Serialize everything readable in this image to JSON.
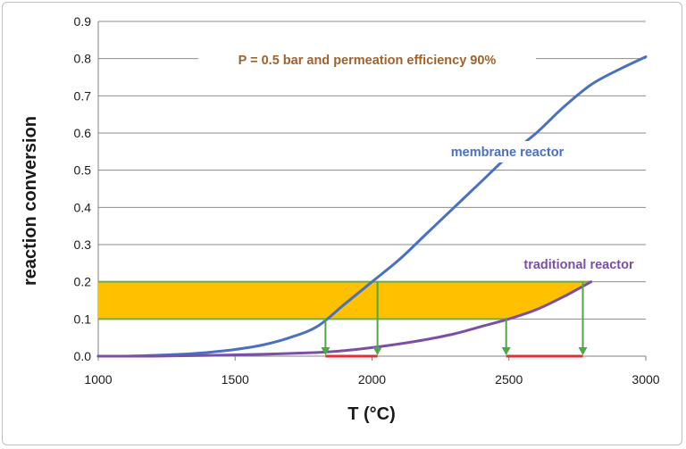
{
  "chart_data": {
    "type": "line",
    "title": "",
    "xlabel": "T (°C)",
    "ylabel": "reaction conversion",
    "xlim": [
      1000,
      3000
    ],
    "ylim": [
      0,
      0.9
    ],
    "x_ticks": [
      1000,
      1500,
      2000,
      2500,
      3000
    ],
    "y_ticks": [
      "0.0",
      "0.1",
      "0.2",
      "0.3",
      "0.4",
      "0.5",
      "0.6",
      "0.7",
      "0.8",
      "0.9"
    ],
    "grid": "horizontal",
    "series": [
      {
        "name": "membrane reactor",
        "color": "#4a70c0",
        "x": [
          1000,
          1100,
          1200,
          1300,
          1400,
          1500,
          1600,
          1700,
          1800,
          1900,
          2000,
          2100,
          2200,
          2300,
          2400,
          2500,
          2600,
          2700,
          2800,
          2900,
          3000
        ],
        "y": [
          0.0,
          0.0,
          0.002,
          0.005,
          0.01,
          0.018,
          0.03,
          0.05,
          0.08,
          0.14,
          0.2,
          0.26,
          0.33,
          0.4,
          0.47,
          0.54,
          0.6,
          0.67,
          0.73,
          0.77,
          0.805
        ]
      },
      {
        "name": "traditional reactor",
        "color": "#7b4fa8",
        "x": [
          1000,
          1200,
          1400,
          1600,
          1800,
          1900,
          2000,
          2100,
          2200,
          2300,
          2400,
          2500,
          2600,
          2700,
          2800
        ],
        "y": [
          0.0,
          0.0,
          0.002,
          0.005,
          0.01,
          0.015,
          0.023,
          0.033,
          0.045,
          0.06,
          0.08,
          0.1,
          0.125,
          0.16,
          0.2
        ]
      }
    ],
    "band": {
      "from": 0.1,
      "to": 0.2,
      "fill": "#ffc000",
      "edge": "#70ad47"
    },
    "markers": {
      "color": "#4ea847",
      "arrows": [
        {
          "x": 1830,
          "y_from": 0.1,
          "y_to": 0.0
        },
        {
          "x": 2020,
          "y_from": 0.2,
          "y_to": 0.0
        },
        {
          "x": 2490,
          "y_from": 0.1,
          "y_to": 0.0
        },
        {
          "x": 2770,
          "y_from": 0.2,
          "y_to": 0.0
        }
      ],
      "ranges": [
        {
          "from": 1830,
          "to": 2020
        },
        {
          "from": 2490,
          "to": 2770
        }
      ],
      "range_color": "#e03030"
    },
    "annotations": {
      "conditions": "P = 0.5 bar and permeation efficiency 90%",
      "conditions_color": "#a0622d",
      "membrane_label": "membrane reactor",
      "membrane_label_color": "#4a70c0",
      "traditional_label": "traditional reactor",
      "traditional_label_color": "#7b4fa8"
    }
  }
}
